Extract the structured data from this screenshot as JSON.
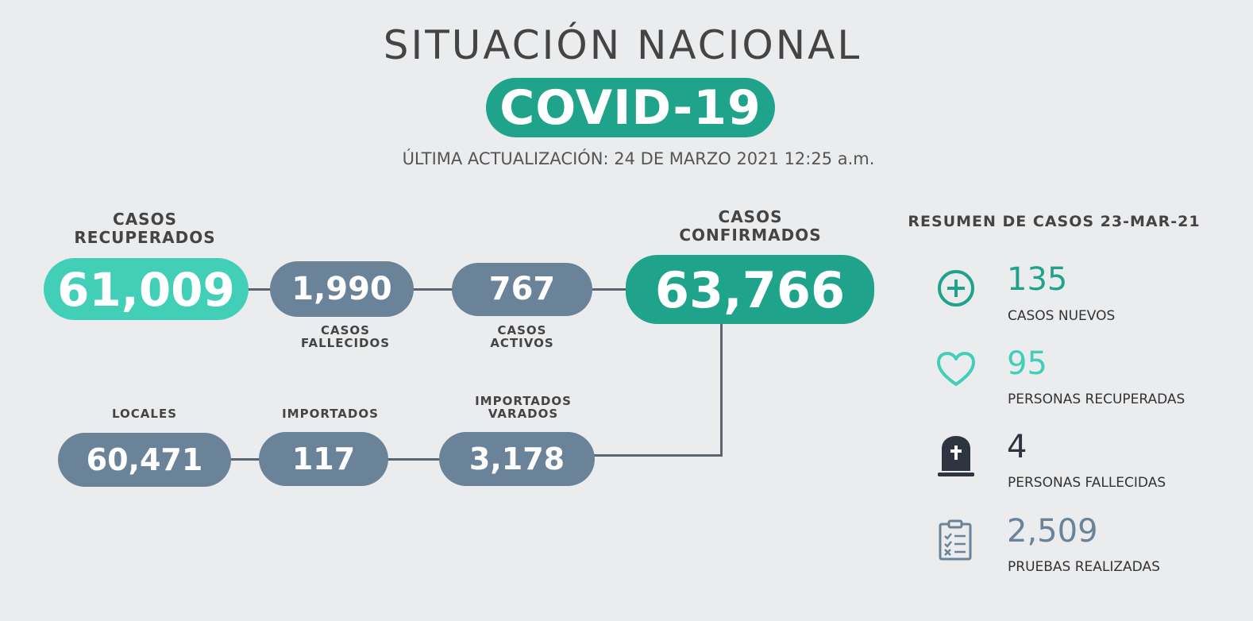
{
  "header": {
    "title": "SITUACIÓN NACIONAL",
    "badge": "COVID-19",
    "updated": "ÚLTIMA ACTUALIZACIÓN: 24 DE MARZO 2021 12:25 a.m."
  },
  "flow": {
    "recuperados": {
      "label_1": "CASOS",
      "label_2": "RECUPERADOS",
      "value": "61,009"
    },
    "fallecidos": {
      "label_1": "CASOS",
      "label_2": "FALLECIDOS",
      "value": "1,990"
    },
    "activos": {
      "label_1": "CASOS",
      "label_2": "ACTIVOS",
      "value": "767"
    },
    "confirmados": {
      "label_1": "CASOS",
      "label_2": "CONFIRMADOS",
      "value": "63,766"
    },
    "locales": {
      "label": "LOCALES",
      "value": "60,471"
    },
    "importados": {
      "label": "IMPORTADOS",
      "value": "117"
    },
    "varados": {
      "label_1": "IMPORTADOS",
      "label_2": "VARADOS",
      "value": "3,178"
    }
  },
  "summary": {
    "title": "RESUMEN DE CASOS 23-MAR-21",
    "items": [
      {
        "icon": "plus-circle-icon",
        "value": "135",
        "label": "CASOS NUEVOS",
        "color": "#1fa38a"
      },
      {
        "icon": "heart-icon",
        "value": "95",
        "label": "PERSONAS RECUPERADAS",
        "color": "#42cfb8"
      },
      {
        "icon": "tombstone-icon",
        "value": "4",
        "label": "PERSONAS FALLECIDAS",
        "color": "#2e3440"
      },
      {
        "icon": "clipboard-checklist-icon",
        "value": "2,509",
        "label": "PRUEBAS REALIZADAS",
        "color": "#6a8399"
      }
    ]
  },
  "colors": {
    "teal_dark": "#1fa38a",
    "teal_light": "#42cfb8",
    "slate": "#6a8399",
    "background": "#ebecee"
  }
}
